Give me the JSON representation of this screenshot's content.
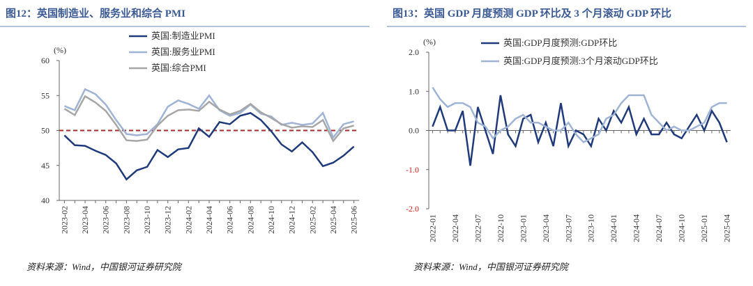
{
  "chart_data": [
    {
      "type": "line",
      "title": "图12：英国制造业、服务业和综合 PMI",
      "unit_label": "(%)",
      "source": "资料来源：Wind，中国银河证券研究院",
      "categories": [
        "2023-02",
        null,
        "2023-04",
        null,
        "2023-06",
        null,
        "2023-08",
        null,
        "2023-10",
        null,
        "2023-12",
        null,
        "2024-02",
        null,
        "2024-04",
        null,
        "2024-06",
        null,
        "2024-08",
        null,
        "2024-10",
        null,
        "2024-12",
        null,
        "2025-02",
        null,
        "2025-04",
        null,
        "2025-06"
      ],
      "series": [
        {
          "name": "英国:制造业PMI",
          "color": "#1f3a7a",
          "values": [
            49.3,
            47.9,
            47.8,
            47.1,
            46.5,
            45.3,
            43.0,
            44.3,
            44.8,
            47.2,
            46.2,
            47.3,
            47.5,
            50.3,
            49.1,
            51.2,
            50.9,
            52.1,
            52.5,
            51.5,
            49.9,
            48.0,
            47.0,
            48.3,
            46.9,
            44.9,
            45.4,
            46.4,
            47.7
          ]
        },
        {
          "name": "英国:服务业PMI",
          "color": "#9fb3d4",
          "values": [
            53.5,
            52.9,
            55.9,
            55.2,
            53.7,
            51.5,
            49.5,
            49.3,
            49.5,
            50.9,
            53.4,
            54.3,
            53.8,
            53.1,
            55.0,
            52.9,
            52.1,
            52.5,
            53.7,
            52.4,
            52.0,
            50.8,
            51.1,
            50.8,
            51.0,
            52.5,
            49.0,
            50.9,
            51.3
          ]
        },
        {
          "name": "英国:综合PMI",
          "color": "#a6a6a6",
          "values": [
            53.1,
            52.2,
            54.9,
            54.0,
            52.8,
            50.8,
            48.6,
            48.5,
            48.7,
            50.7,
            52.1,
            52.9,
            53.0,
            52.8,
            54.1,
            53.0,
            52.3,
            52.8,
            53.8,
            52.6,
            51.8,
            50.9,
            50.4,
            50.6,
            50.5,
            51.5,
            48.5,
            50.3,
            50.7
          ]
        }
      ],
      "ylim": [
        40,
        60
      ],
      "yticks": [
        40,
        45,
        50,
        55,
        60
      ],
      "reference_line": {
        "value": 50,
        "color": "#a52a2a"
      }
    },
    {
      "type": "line",
      "title": "图13：英国 GDP 月度预测 GDP 环比及 3 个月滚动 GDP 环比",
      "unit_label": "(%)",
      "source": "资料来源：Wind，中国银河证券研究院",
      "categories": [
        "2022-01",
        null,
        null,
        "2022-04",
        null,
        null,
        "2022-07",
        null,
        null,
        "2022-10",
        null,
        null,
        "2023-01",
        null,
        null,
        "2023-04",
        null,
        null,
        "2023-07",
        null,
        null,
        "2023-10",
        null,
        null,
        "2024-01",
        null,
        null,
        "2024-04",
        null,
        null,
        "2024-07",
        null,
        null,
        "2024-10",
        null,
        null,
        "2025-01",
        null,
        null,
        "2025-04"
      ],
      "series": [
        {
          "name": "英国:GDP月度预测:GDP环比",
          "color": "#1f3a7a",
          "values": [
            0.1,
            0.6,
            0.0,
            0.0,
            0.5,
            -0.9,
            0.6,
            0.0,
            -0.6,
            0.9,
            -0.1,
            -0.4,
            0.3,
            0.4,
            -0.3,
            0.2,
            -0.4,
            0.7,
            -0.4,
            0.0,
            -0.1,
            -0.4,
            0.3,
            0.0,
            0.5,
            0.2,
            0.6,
            -0.1,
            0.3,
            -0.1,
            -0.1,
            0.2,
            -0.1,
            -0.2,
            0.1,
            0.4,
            0.0,
            0.5,
            0.2,
            -0.3
          ]
        },
        {
          "name": "英国:GDP月度预测:3个月滚动GDP环比",
          "color": "#9fb3d4",
          "values": [
            1.1,
            0.8,
            0.6,
            0.7,
            0.7,
            0.6,
            0.2,
            0.1,
            -0.2,
            0.0,
            0.1,
            0.3,
            0.4,
            0.2,
            0.2,
            0.1,
            0.0,
            0.0,
            0.2,
            -0.1,
            -0.3,
            -0.2,
            -0.1,
            0.3,
            0.4,
            0.7,
            0.9,
            0.9,
            0.9,
            0.4,
            0.2,
            0.0,
            0.1,
            0.0,
            0.0,
            0.1,
            0.2,
            0.6,
            0.7,
            0.7
          ]
        }
      ],
      "ylim": [
        -2,
        2
      ],
      "yticks": [
        {
          "value": -2,
          "label": "-2.0"
        },
        {
          "value": -1,
          "label": "-1.0"
        },
        {
          "value": 0,
          "label": "0.0"
        },
        {
          "value": 1,
          "label": "1.0"
        },
        {
          "value": 2,
          "label": "2.0"
        }
      ],
      "negative_tick_color": "#d02020"
    }
  ]
}
